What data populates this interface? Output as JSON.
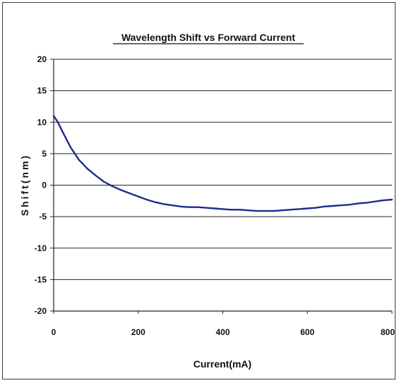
{
  "chart_data": {
    "type": "line",
    "title": "Wavelength Shift vs Forward Current",
    "xlabel": "Current(mA)",
    "ylabel": "Shift(nm)",
    "xlim": [
      0,
      800
    ],
    "ylim": [
      -20,
      20
    ],
    "x_ticks": [
      "0",
      "200",
      "400",
      "600",
      "800"
    ],
    "y_ticks": [
      "20",
      "15",
      "10",
      "5",
      "0",
      "-5",
      "-10",
      "-15",
      "-20"
    ],
    "grid": "horizontal",
    "line_color": "#1f2a8c",
    "series": [
      {
        "x": [
          0,
          10,
          20,
          40,
          60,
          80,
          100,
          120,
          140,
          160,
          180,
          200,
          220,
          240,
          260,
          280,
          300,
          320,
          340,
          360,
          380,
          400,
          420,
          440,
          460,
          480,
          500,
          520,
          540,
          560,
          580,
          600,
          620,
          640,
          660,
          680,
          700,
          720,
          740,
          760,
          780,
          800
        ],
        "y": [
          11,
          10,
          8.6,
          6,
          4,
          2.6,
          1.5,
          0.5,
          -0.2,
          -0.8,
          -1.3,
          -1.8,
          -2.3,
          -2.7,
          -3,
          -3.2,
          -3.4,
          -3.5,
          -3.5,
          -3.6,
          -3.7,
          -3.8,
          -3.9,
          -3.9,
          -4,
          -4.1,
          -4.1,
          -4.1,
          -4,
          -3.9,
          -3.8,
          -3.7,
          -3.6,
          -3.4,
          -3.3,
          -3.2,
          -3.1,
          -2.9,
          -2.8,
          -2.6,
          -2.4,
          -2.3
        ]
      }
    ]
  }
}
